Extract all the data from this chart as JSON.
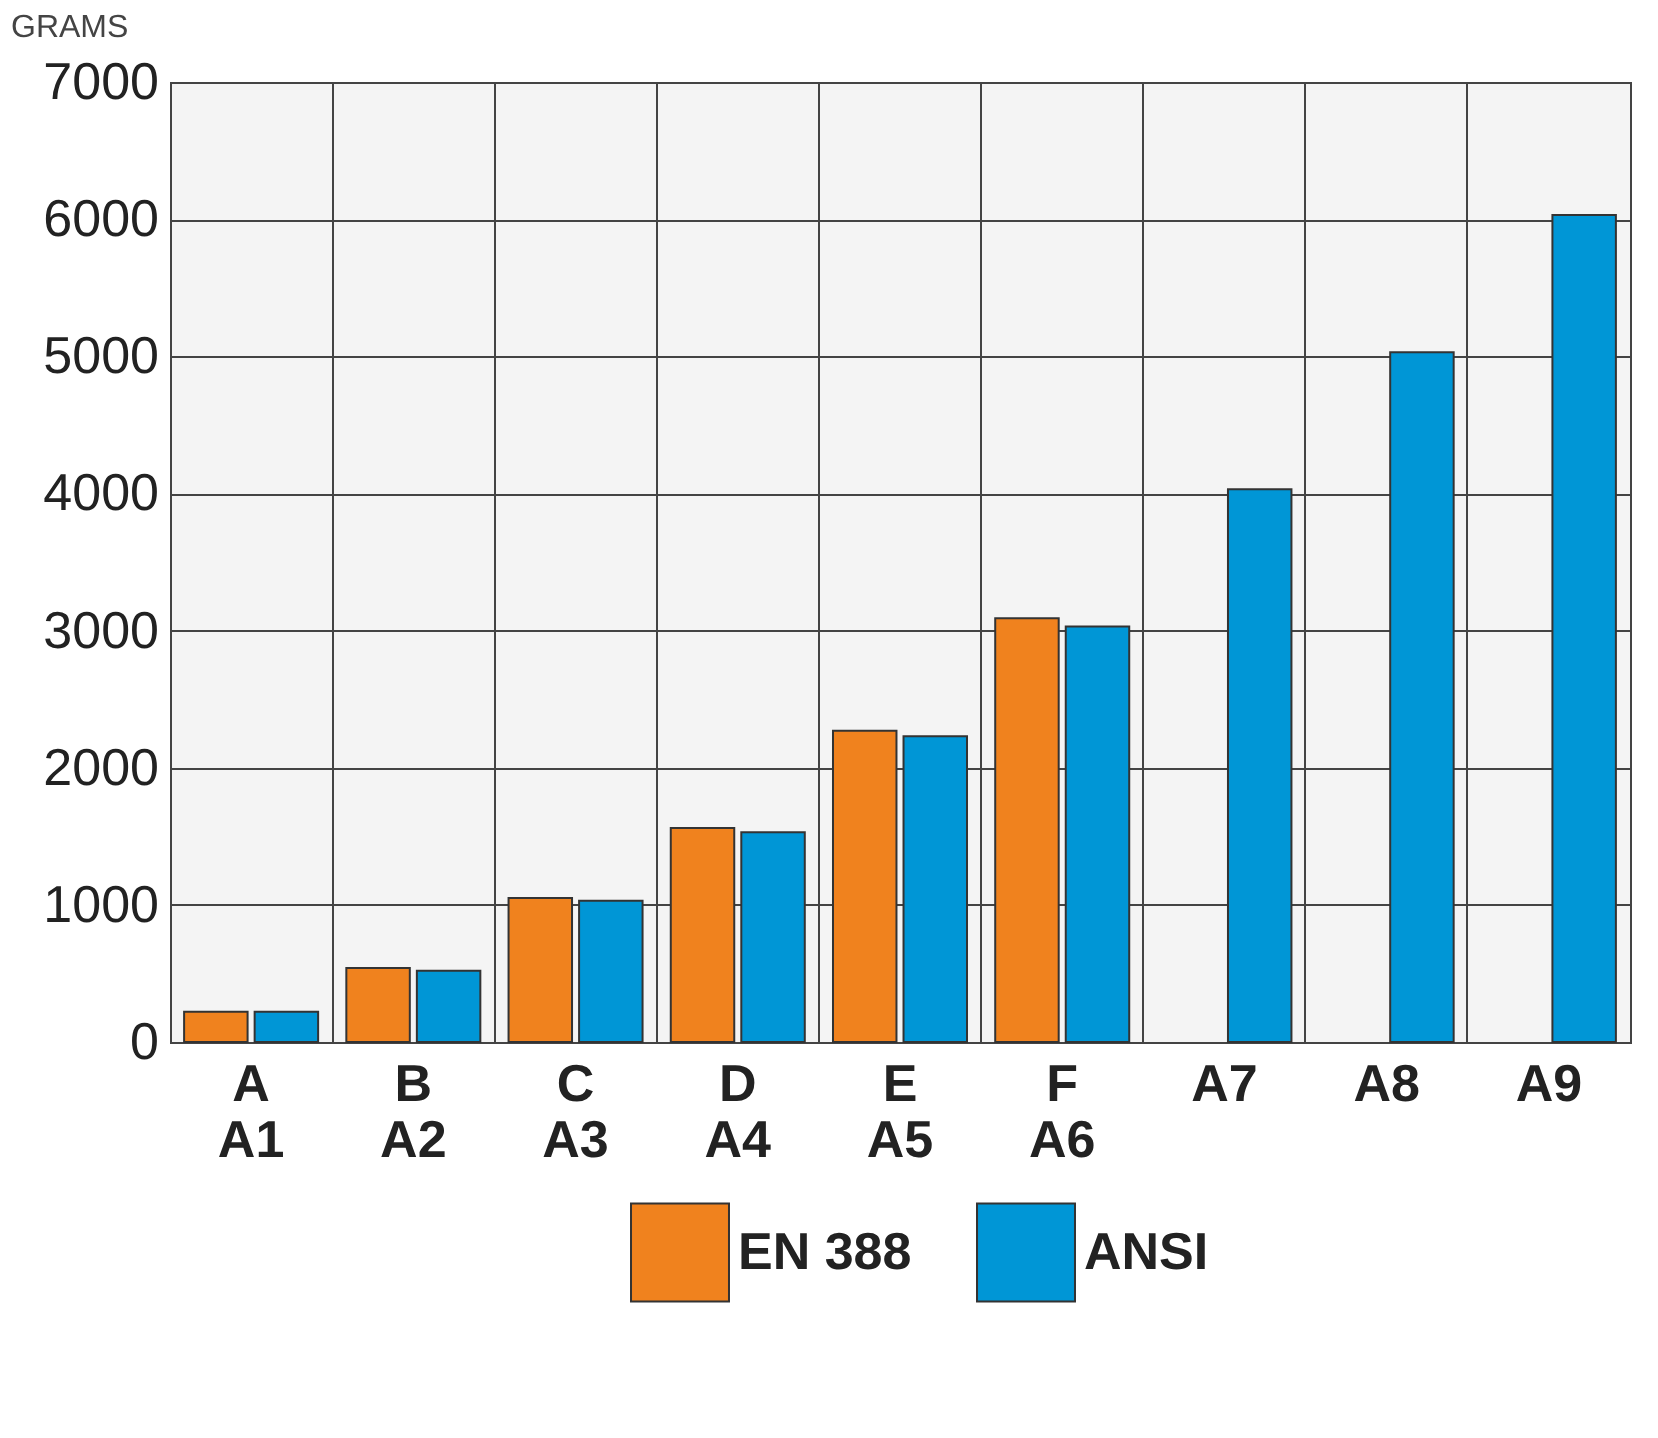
{
  "chart_data": {
    "type": "bar",
    "ylabel": "GRAMS",
    "categories": [
      "A\nA1",
      "B\nA2",
      "C\nA3",
      "D\nA4",
      "E\nA5",
      "F\nA6",
      "A7",
      "A8",
      "A9"
    ],
    "series": [
      {
        "name": "EN 388",
        "color": "#f0821e",
        "values": [
          220,
          540,
          1050,
          1560,
          2270,
          3090,
          null,
          null,
          null
        ]
      },
      {
        "name": "ANSI",
        "color": "#0096d6",
        "values": [
          220,
          520,
          1030,
          1530,
          2230,
          3030,
          4030,
          5030,
          6030
        ]
      }
    ],
    "ylim": [
      0,
      7000
    ],
    "yticks": [
      0,
      1000,
      2000,
      3000,
      4000,
      5000,
      6000,
      7000
    ],
    "grid": true,
    "legend": "bottom"
  }
}
